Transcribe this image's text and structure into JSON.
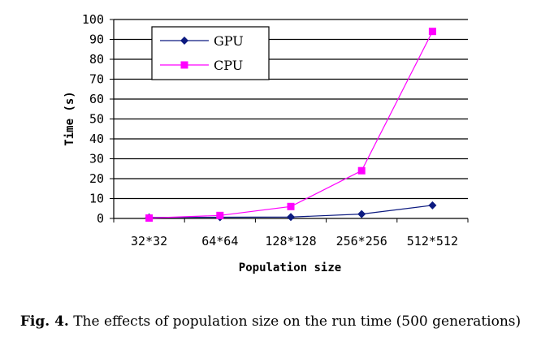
{
  "chart_data": {
    "type": "line",
    "title": "",
    "xlabel": "Population size",
    "ylabel": "Time (s)",
    "categories": [
      "32*32",
      "64*64",
      "128*128",
      "256*256",
      "512*512"
    ],
    "ylim": [
      0,
      100
    ],
    "yticks": [
      0,
      10,
      20,
      30,
      40,
      50,
      60,
      70,
      80,
      90,
      100
    ],
    "grid": true,
    "legend_position": "top-left",
    "series": [
      {
        "name": "GPU",
        "values": [
          0.5,
          0.6,
          0.7,
          2.2,
          6.6
        ],
        "color": "#0c1a80",
        "marker": "diamond"
      },
      {
        "name": "CPU",
        "values": [
          0.2,
          1.5,
          6.0,
          24.0,
          94.0
        ],
        "color": "#ff00ff",
        "marker": "square"
      }
    ]
  },
  "caption": {
    "label": "Fig. 4.",
    "text": "The effects of population size on the run time (500 generations)"
  }
}
